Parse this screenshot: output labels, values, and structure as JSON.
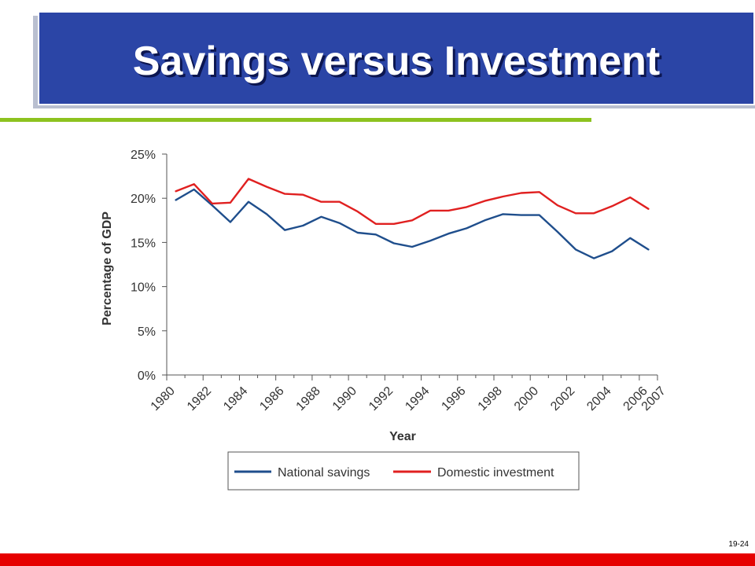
{
  "slide": {
    "title": "Savings versus Investment",
    "number": "19-24"
  },
  "colors": {
    "title_bg": "#2b45a6",
    "accent_green": "#8dc21f",
    "bottom_red": "#e60000"
  },
  "chart_data": {
    "type": "line",
    "xlabel": "Year",
    "ylabel": "Percentage of GDP",
    "xlim": [
      1980,
      2007
    ],
    "ylim": [
      0,
      25
    ],
    "x_ticks": [
      "1980",
      "1982",
      "1984",
      "1986",
      "1988",
      "1990",
      "1992",
      "1994",
      "1996",
      "1998",
      "2000",
      "2002",
      "2004",
      "2006",
      "2007"
    ],
    "x_tick_values": [
      1980,
      1982,
      1984,
      1986,
      1988,
      1990,
      1992,
      1994,
      1996,
      1998,
      2000,
      2002,
      2004,
      2006,
      2007
    ],
    "y_ticks": [
      "0%",
      "5%",
      "10%",
      "15%",
      "20%",
      "25%"
    ],
    "y_tick_values": [
      0,
      5,
      10,
      15,
      20,
      25
    ],
    "grid": false,
    "legend_position": "bottom",
    "x": [
      1980.5,
      1981.5,
      1982.5,
      1983.5,
      1984.5,
      1985.5,
      1986.5,
      1987.5,
      1988.5,
      1989.5,
      1990.5,
      1991.5,
      1992.5,
      1993.5,
      1994.5,
      1995.5,
      1996.5,
      1997.5,
      1998.5,
      1999.5,
      2000.5,
      2001.5,
      2002.5,
      2003.5,
      2004.5,
      2005.5,
      2006.5
    ],
    "series": [
      {
        "name": "National savings",
        "color": "#1f4e8c",
        "values": [
          19.8,
          21.0,
          19.2,
          17.3,
          19.6,
          18.2,
          16.4,
          16.9,
          17.9,
          17.2,
          16.1,
          15.9,
          14.9,
          14.5,
          15.2,
          16.0,
          16.6,
          17.5,
          18.2,
          18.1,
          18.1,
          16.2,
          14.2,
          13.2,
          14.0,
          15.5,
          14.2
        ]
      },
      {
        "name": "Domestic investment",
        "color": "#e02020",
        "values": [
          20.8,
          21.6,
          19.4,
          19.5,
          22.2,
          21.3,
          20.5,
          20.4,
          19.6,
          19.6,
          18.5,
          17.1,
          17.1,
          17.5,
          18.6,
          18.6,
          19.0,
          19.7,
          20.2,
          20.6,
          20.7,
          19.2,
          18.3,
          18.3,
          19.1,
          20.1,
          18.8
        ]
      }
    ]
  }
}
